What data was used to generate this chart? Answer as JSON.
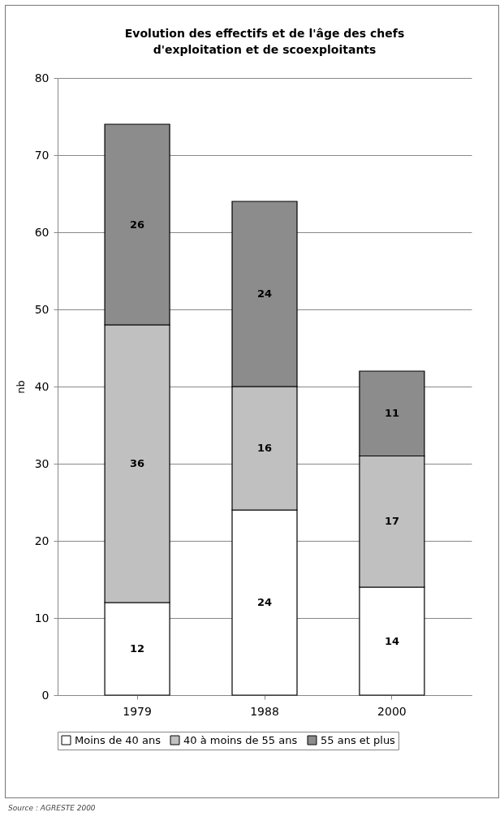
{
  "chart_data": {
    "type": "bar",
    "title": "Evolution des effectifs et de l'âge des chefs d'exploitation et de scoexploitants",
    "ylabel": "nb",
    "categories": [
      "1979",
      "1988",
      "2000"
    ],
    "stacked": true,
    "series": [
      {
        "name": "Moins de 40 ans",
        "color": "#ffffff",
        "values": [
          12,
          24,
          14
        ]
      },
      {
        "name": "40 à moins de 55 ans",
        "color": "#c0c0c0",
        "values": [
          36,
          16,
          17
        ]
      },
      {
        "name": "55 ans et plus",
        "color": "#8c8c8c",
        "values": [
          26,
          24,
          11
        ]
      }
    ],
    "ylim": [
      0,
      80
    ],
    "yticks": [
      0,
      10,
      20,
      30,
      40,
      50,
      60,
      70,
      80
    ],
    "grid": "y",
    "legend": "bottom",
    "data_labels": true,
    "annotations": [
      "Source : AGRESTE 2000"
    ]
  }
}
